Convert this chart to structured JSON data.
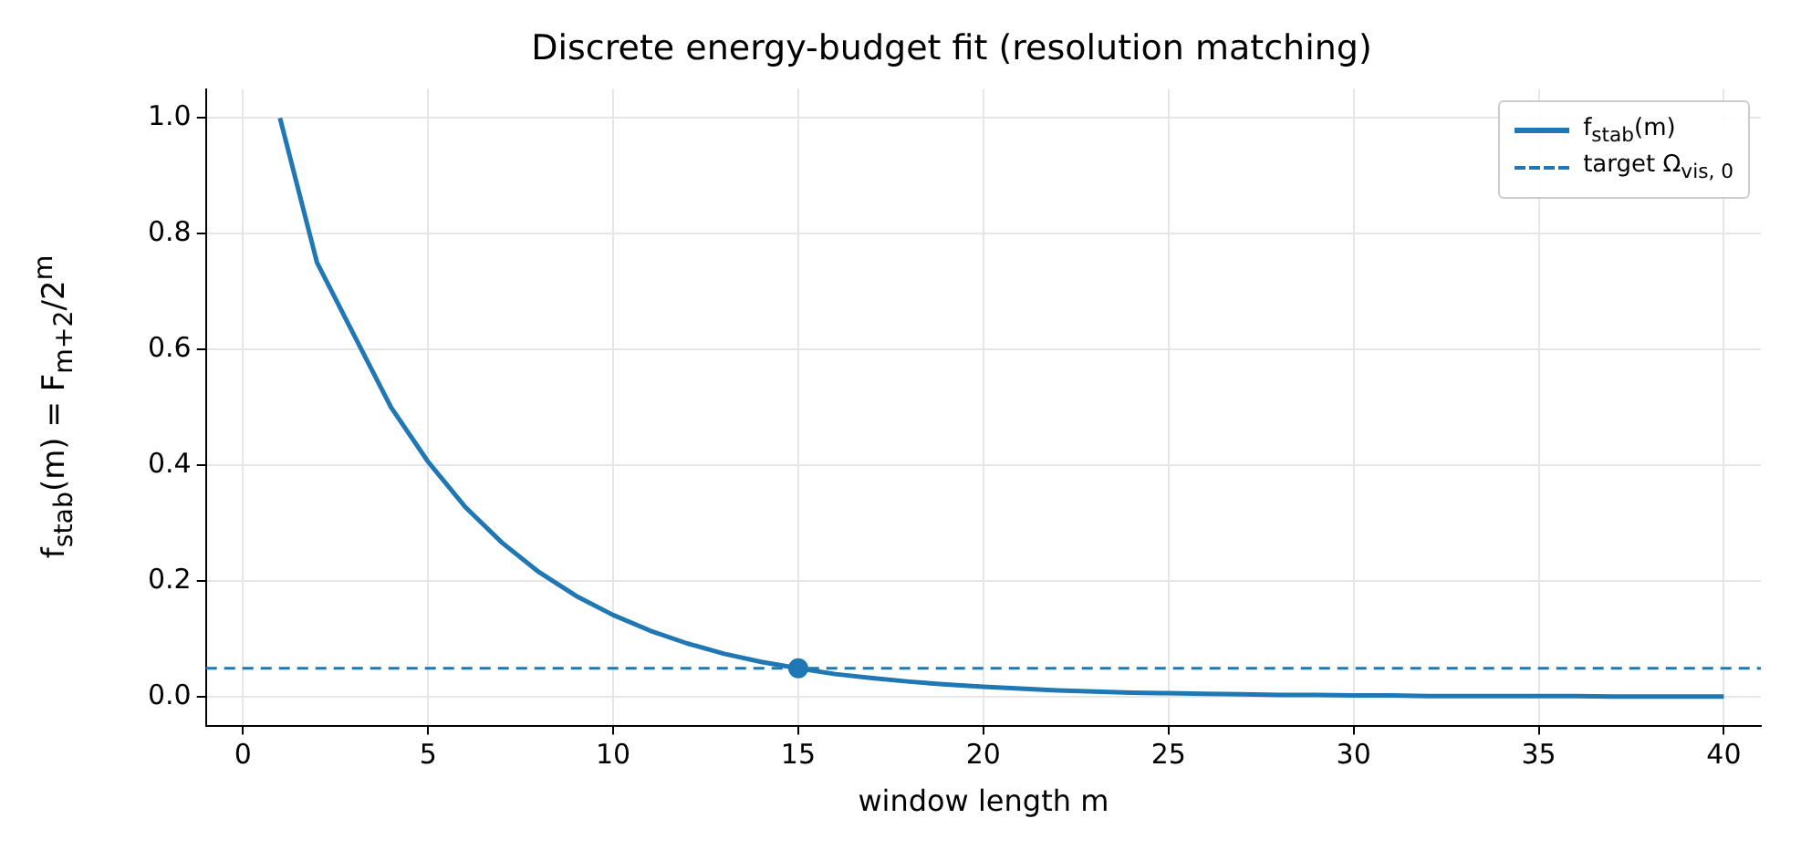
{
  "chart_data": {
    "type": "line",
    "title": "Discrete energy-budget fit (resolution matching)",
    "xlabel": "window length m",
    "ylabel": "f$_{stab}$(m) = F$_{m+2}$/2$^{m}$",
    "x": [
      1,
      2,
      3,
      4,
      5,
      6,
      7,
      8,
      9,
      10,
      11,
      12,
      13,
      14,
      15,
      16,
      17,
      18,
      19,
      20,
      21,
      22,
      23,
      24,
      25,
      26,
      27,
      28,
      29,
      30,
      31,
      32,
      33,
      34,
      35,
      36,
      37,
      38,
      39,
      40
    ],
    "series": [
      {
        "name": "f$_{stab}$(m)",
        "color": "#1f77b4",
        "values": [
          1,
          0.75,
          0.625,
          0.5,
          0.406,
          0.328,
          0.266,
          0.215,
          0.174,
          0.141,
          0.114,
          0.092,
          0.074,
          0.06,
          0.049,
          0.039,
          0.032,
          0.026,
          0.021,
          0.017,
          0.014,
          0.011,
          0.009,
          0.007,
          0.006,
          0.005,
          0.004,
          0.003,
          0.003,
          0.002,
          0.002,
          0.001,
          0.001,
          0.001,
          0.001,
          0.001,
          0,
          0,
          0,
          0
        ]
      },
      {
        "type": "scatter",
        "color": "#1f77b4",
        "x": [
          15
        ],
        "values": [
          0.049
        ],
        "marker": "circle"
      }
    ],
    "xlim": [
      -1,
      41
    ],
    "xticks": [
      0,
      5,
      10,
      15,
      20,
      25,
      30,
      35,
      40
    ],
    "ylim": [
      -0.05,
      1.05
    ],
    "yticks": [
      {
        "value": 0,
        "label": "0.0"
      },
      {
        "value": 0.2,
        "label": "0.2"
      },
      {
        "value": 0.4,
        "label": "0.4"
      },
      {
        "value": 0.6,
        "label": "0.6"
      },
      {
        "value": 0.8,
        "label": "0.8"
      },
      {
        "value": 1,
        "label": "1.0"
      }
    ],
    "ref_lines": [
      {
        "axis": "y",
        "value": 0.049,
        "label": "target Ω$_{vis, 0}$",
        "color": "#1f77b4",
        "line_style": "dashed"
      }
    ],
    "grid": true,
    "legend": "top right",
    "marker": "none",
    "line_style": "solid"
  }
}
